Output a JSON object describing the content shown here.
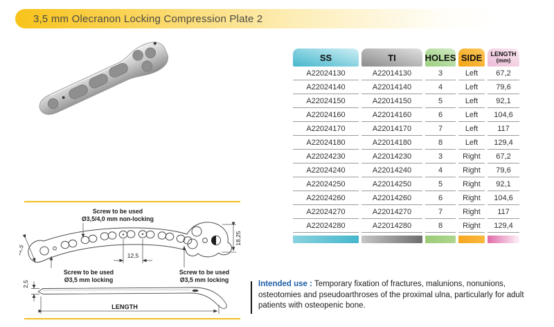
{
  "title": "3,5 mm Olecranon Locking Compression Plate 2",
  "colors": {
    "accent_yellow": "#f4c41d",
    "intended_use_label_blue": "#1e5fa5",
    "row_separator_gray": "#9b9b9b"
  },
  "table": {
    "columns": [
      {
        "key": "ss",
        "label": "SS",
        "header_from": "#45b7cd",
        "header_to": "#cdeef4",
        "footer_from": "#8ad2de",
        "footer_to": "#45b6cd"
      },
      {
        "key": "ti",
        "label": "TI",
        "header_from": "#8c8c8c",
        "header_to": "#e0e0e0",
        "footer_from": "#c6c6c6",
        "footer_to": "#6e6e6e"
      },
      {
        "key": "holes",
        "label": "HOLES",
        "header_from": "#9bd080",
        "header_to": "#d2eac3",
        "footer_from": "#9ccb78",
        "footer_to": "#aed68d"
      },
      {
        "key": "side",
        "label": "SIDE",
        "header_from": "#f5a315",
        "header_to": "#fbc85c",
        "footer_from": "#f6a71f",
        "footer_to": "#f9b83f"
      },
      {
        "key": "length",
        "label": "LENGTH",
        "sublabel": "(mm)",
        "header_from": "#ecbcd6",
        "header_to": "#fae8f2",
        "footer_from": "#e06ba8",
        "footer_to": "#fdf2f8"
      }
    ],
    "rows": [
      {
        "ss": "A22024130",
        "ti": "A22014130",
        "holes": "3",
        "side": "Left",
        "length": "67,2"
      },
      {
        "ss": "A22024140",
        "ti": "A22014140",
        "holes": "4",
        "side": "Left",
        "length": "79,6"
      },
      {
        "ss": "A22024150",
        "ti": "A22014150",
        "holes": "5",
        "side": "Left",
        "length": "92,1"
      },
      {
        "ss": "A22024160",
        "ti": "A22014160",
        "holes": "6",
        "side": "Left",
        "length": "104,6"
      },
      {
        "ss": "A22024170",
        "ti": "A22014170",
        "holes": "7",
        "side": "Left",
        "length": "117"
      },
      {
        "ss": "A22024180",
        "ti": "A22014180",
        "holes": "8",
        "side": "Left",
        "length": "129,4"
      },
      {
        "ss": "A22024230",
        "ti": "A22014230",
        "holes": "3",
        "side": "Right",
        "length": "67,2"
      },
      {
        "ss": "A22024240",
        "ti": "A22014240",
        "holes": "4",
        "side": "Right",
        "length": "79,6"
      },
      {
        "ss": "A22024250",
        "ti": "A22014250",
        "holes": "5",
        "side": "Right",
        "length": "92,1"
      },
      {
        "ss": "A22024260",
        "ti": "A22014260",
        "holes": "6",
        "side": "Right",
        "length": "104,6"
      },
      {
        "ss": "A22024270",
        "ti": "A22014270",
        "holes": "7",
        "side": "Right",
        "length": "117"
      },
      {
        "ss": "A22024280",
        "ti": "A22014280",
        "holes": "8",
        "side": "Right",
        "length": "129,4"
      }
    ]
  },
  "drawing": {
    "labels": {
      "top": [
        "Screw to be used",
        "Ø3,5/4,0 mm non-locking"
      ],
      "bottom_left": [
        "Screw to be used",
        "Ø3,5 mm locking"
      ],
      "bottom_right": [
        "Screw to be used",
        "Ø3,5 mm locking"
      ]
    },
    "dimensions": {
      "plate_width": "11,5",
      "hole_pitch": "12,5",
      "head_width": "18,25",
      "thickness": "2,5",
      "length": "LENGTH"
    }
  },
  "intended_use": {
    "label": "Intended use :",
    "text": " Temporary fixation of fractures, malunions, nonunions, osteotomies and pseudoarthroses of the proximal ulna, particularly for adult patients with osteopenic bone."
  }
}
